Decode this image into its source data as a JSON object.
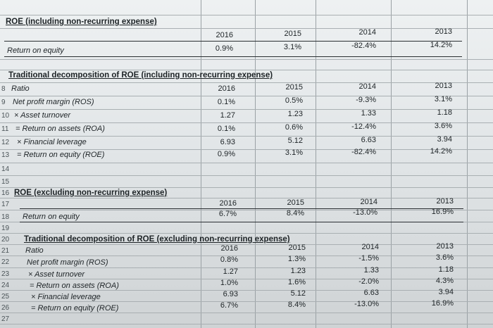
{
  "sections": {
    "roe_incl": {
      "title": "ROE (including non-recurring expense)",
      "years": [
        "2016",
        "2015",
        "2014",
        "2013"
      ],
      "row_label": "Return on equity",
      "values": [
        "0.9%",
        "3.1%",
        "-82.4%",
        "14.2%"
      ]
    },
    "decomp_incl": {
      "title": "Traditional decomposition of ROE (including non-recurring expense)",
      "header_label": "Ratio",
      "years": [
        "2016",
        "2015",
        "2014",
        "2013"
      ],
      "rows": [
        {
          "label": "Net profit margin (ROS)",
          "values": [
            "0.1%",
            "0.5%",
            "-9.3%",
            "3.1%"
          ]
        },
        {
          "label": "× Asset turnover",
          "values": [
            "1.27",
            "1.23",
            "1.33",
            "1.18"
          ]
        },
        {
          "label": "= Return on assets (ROA)",
          "values": [
            "0.1%",
            "0.6%",
            "-12.4%",
            "3.6%"
          ]
        },
        {
          "label": "× Financial leverage",
          "values": [
            "6.93",
            "5.12",
            "6.63",
            "3.94"
          ]
        },
        {
          "label": "= Return on equity (ROE)",
          "values": [
            "0.9%",
            "3.1%",
            "-82.4%",
            "14.2%"
          ]
        }
      ]
    },
    "roe_excl": {
      "title": "ROE (excluding non-recurring expense)",
      "years": [
        "2016",
        "2015",
        "2014",
        "2013"
      ],
      "row_label": "Return on equity",
      "values": [
        "6.7%",
        "8.4%",
        "-13.0%",
        "16.9%"
      ]
    },
    "decomp_excl": {
      "title": "Traditional decomposition of ROE (excluding non-recurring expense)",
      "header_label": "Ratio",
      "years": [
        "2016",
        "2015",
        "2014",
        "2013"
      ],
      "rows": [
        {
          "label": "Net profit margin (ROS)",
          "values": [
            "0.8%",
            "1.3%",
            "-1.5%",
            "3.6%"
          ]
        },
        {
          "label": "× Asset turnover",
          "values": [
            "1.27",
            "1.23",
            "1.33",
            "1.18"
          ]
        },
        {
          "label": "= Return on assets (ROA)",
          "values": [
            "1.0%",
            "1.6%",
            "-2.0%",
            "4.3%"
          ]
        },
        {
          "label": "× Financial leverage",
          "values": [
            "6.93",
            "5.12",
            "6.63",
            "3.94"
          ]
        },
        {
          "label": "= Return on equity (ROE)",
          "values": [
            "6.7%",
            "8.4%",
            "-13.0%",
            "16.9%"
          ]
        }
      ]
    }
  },
  "row_numbers": {
    "r8": "8",
    "r9": "9",
    "r10": "10",
    "r11": "11",
    "r12": "12",
    "r13": "13",
    "r14": "14",
    "r15": "15",
    "r16": "16",
    "r17": "17",
    "r18": "18",
    "r19": "19",
    "r20": "20",
    "r21": "21",
    "r22": "22",
    "r23": "23",
    "r24": "24",
    "r25": "25",
    "r26": "26",
    "r27": "27"
  }
}
